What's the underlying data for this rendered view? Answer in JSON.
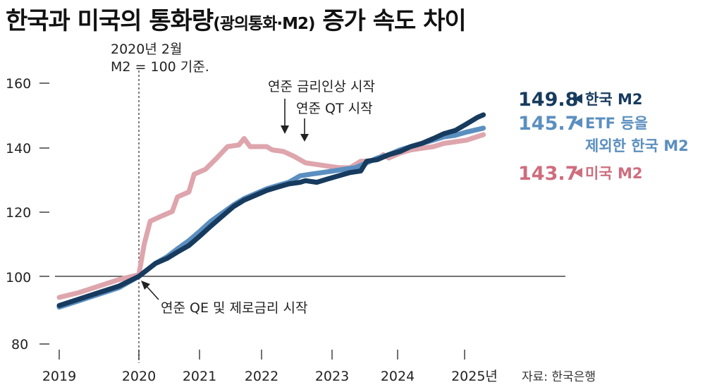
{
  "title": {
    "main": "한국과 미국의 통화량",
    "sub": "(광의통화·M2)",
    "tail": " 증가 속도 차이"
  },
  "source": "자료: 한국은행",
  "colors": {
    "korea": "#173b5e",
    "korea_etf": "#5b8fc0",
    "us": "#dea5ad",
    "us_label": "#cf6d7d"
  },
  "chart_data": {
    "type": "line",
    "title": "한국과 미국의 통화량(광의통화·M2) 증가 속도 차이",
    "x_ticks": [
      "2019",
      "2020",
      "2021",
      "2022",
      "2023",
      "2024",
      "2025년"
    ],
    "y_ticks": [
      "80",
      "100",
      "120",
      "140",
      "160"
    ],
    "xlim": [
      2019,
      2026.2
    ],
    "ylim": [
      80,
      163
    ],
    "series": [
      {
        "name": "한국 M2",
        "end_value": "149.8",
        "points": [
          [
            2019.0,
            91
          ],
          [
            2019.25,
            93
          ],
          [
            2019.5,
            95
          ],
          [
            2019.75,
            97
          ],
          [
            2020.0,
            100
          ],
          [
            2020.25,
            104
          ],
          [
            2020.42,
            105.5
          ],
          [
            2020.58,
            107.5
          ],
          [
            2020.75,
            109.5
          ],
          [
            2020.92,
            112.5
          ],
          [
            2021.08,
            115.5
          ],
          [
            2021.25,
            118.5
          ],
          [
            2021.42,
            121.5
          ],
          [
            2021.58,
            123.5
          ],
          [
            2021.75,
            125
          ],
          [
            2021.92,
            126.5
          ],
          [
            2022.08,
            127.5
          ],
          [
            2022.25,
            128.5
          ],
          [
            2022.42,
            129
          ],
          [
            2022.5,
            129.5
          ],
          [
            2022.67,
            129
          ],
          [
            2022.83,
            130
          ],
          [
            2023.0,
            131
          ],
          [
            2023.17,
            132
          ],
          [
            2023.33,
            132.5
          ],
          [
            2023.42,
            135.5
          ],
          [
            2023.58,
            136
          ],
          [
            2023.75,
            137.5
          ],
          [
            2023.92,
            138.5
          ],
          [
            2024.08,
            140
          ],
          [
            2024.25,
            141
          ],
          [
            2024.42,
            142.5
          ],
          [
            2024.58,
            144
          ],
          [
            2024.75,
            145
          ],
          [
            2024.92,
            147
          ],
          [
            2025.08,
            149
          ],
          [
            2025.17,
            149.8
          ]
        ]
      },
      {
        "name": "ETF 등을 제외한 한국 M2",
        "end_value": "145.7",
        "points": [
          [
            2019.0,
            90.5
          ],
          [
            2019.25,
            92.5
          ],
          [
            2019.5,
            94.5
          ],
          [
            2019.75,
            96.5
          ],
          [
            2020.0,
            100
          ],
          [
            2020.25,
            104
          ],
          [
            2020.42,
            106
          ],
          [
            2020.58,
            108.5
          ],
          [
            2020.75,
            111
          ],
          [
            2020.92,
            114
          ],
          [
            2021.08,
            117
          ],
          [
            2021.25,
            119.5
          ],
          [
            2021.42,
            122
          ],
          [
            2021.58,
            124
          ],
          [
            2021.75,
            125.5
          ],
          [
            2021.92,
            127
          ],
          [
            2022.08,
            128
          ],
          [
            2022.25,
            129
          ],
          [
            2022.42,
            131
          ],
          [
            2022.58,
            131.5
          ],
          [
            2022.75,
            132
          ],
          [
            2022.92,
            132.5
          ],
          [
            2023.08,
            133
          ],
          [
            2023.25,
            133.5
          ],
          [
            2023.42,
            135
          ],
          [
            2023.58,
            136.5
          ],
          [
            2023.75,
            137.5
          ],
          [
            2023.92,
            139
          ],
          [
            2024.08,
            140
          ],
          [
            2024.25,
            141
          ],
          [
            2024.42,
            142
          ],
          [
            2024.58,
            143
          ],
          [
            2024.75,
            143.5
          ],
          [
            2024.92,
            144.5
          ],
          [
            2025.17,
            145.7
          ]
        ]
      },
      {
        "name": "미국 M2",
        "end_value": "143.7",
        "points": [
          [
            2019.0,
            93.5
          ],
          [
            2019.25,
            95
          ],
          [
            2019.5,
            97
          ],
          [
            2019.75,
            99
          ],
          [
            2020.0,
            100.5
          ],
          [
            2020.08,
            110
          ],
          [
            2020.17,
            117
          ],
          [
            2020.33,
            118.5
          ],
          [
            2020.5,
            120
          ],
          [
            2020.58,
            124.5
          ],
          [
            2020.75,
            126
          ],
          [
            2020.83,
            131.5
          ],
          [
            2021.0,
            133
          ],
          [
            2021.17,
            136.5
          ],
          [
            2021.33,
            140
          ],
          [
            2021.5,
            140.5
          ],
          [
            2021.58,
            142.5
          ],
          [
            2021.67,
            140
          ],
          [
            2021.83,
            140
          ],
          [
            2021.92,
            140
          ],
          [
            2022.0,
            139
          ],
          [
            2022.17,
            138.5
          ],
          [
            2022.33,
            137
          ],
          [
            2022.5,
            135
          ],
          [
            2022.67,
            134.5
          ],
          [
            2022.83,
            134
          ],
          [
            2023.0,
            133.5
          ],
          [
            2023.17,
            133.5
          ],
          [
            2023.33,
            135.5
          ],
          [
            2023.42,
            135.5
          ],
          [
            2023.58,
            136
          ],
          [
            2023.67,
            137.5
          ],
          [
            2023.75,
            136.5
          ],
          [
            2023.92,
            138
          ],
          [
            2024.08,
            139
          ],
          [
            2024.25,
            139.5
          ],
          [
            2024.42,
            140
          ],
          [
            2024.58,
            141
          ],
          [
            2024.75,
            141.5
          ],
          [
            2024.92,
            142
          ],
          [
            2025.17,
            143.7
          ]
        ]
      }
    ],
    "annotations": {
      "base_line": [
        "2020년 2월",
        "M2 = 100 기준."
      ],
      "fed_hike": "연준 금리인상 시작",
      "fed_qt": "연준 QT 시작",
      "fed_qe": "연준 QE 및 제로금리 시작"
    }
  }
}
